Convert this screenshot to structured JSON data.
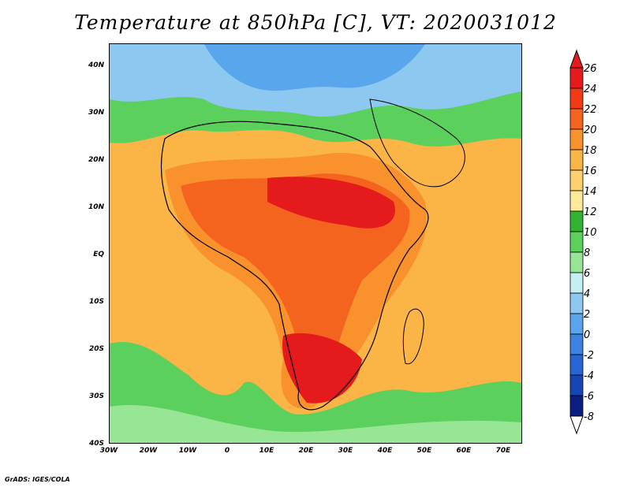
{
  "title": "Temperature at 850hPa [C], VT: 2020031012",
  "credit": "GrADS: IGES/COLA",
  "lat_labels": [
    "40N",
    "30N",
    "20N",
    "10N",
    "EQ",
    "10S",
    "20S",
    "30S",
    "40S"
  ],
  "lon_labels": [
    "30W",
    "20W",
    "10W",
    "0",
    "10E",
    "20E",
    "30E",
    "40E",
    "50E",
    "60E",
    "70E"
  ],
  "colorbar": {
    "labels": [
      "26",
      "24",
      "22",
      "20",
      "18",
      "16",
      "14",
      "12",
      "10",
      "8",
      "6",
      "4",
      "2",
      "0",
      "-2",
      "-4",
      "-6",
      "-8"
    ],
    "colors": [
      "#e41a1c",
      "#f03b16",
      "#f5641e",
      "#f9922c",
      "#fbb446",
      "#fdd170",
      "#fde99a",
      "#32b432",
      "#5cd05c",
      "#96e696",
      "#c4f0f4",
      "#8cc8f0",
      "#5aa6ec",
      "#3c84e0",
      "#2864d2",
      "#1446b4",
      "#0a1e82",
      "#ffffff"
    ]
  },
  "map": {
    "variable": "Temperature at 850hPa",
    "units": "C",
    "valid_time": "2020031012",
    "lon_range": [
      "30W",
      "75E"
    ],
    "lat_range": [
      "40S",
      "45N"
    ]
  }
}
